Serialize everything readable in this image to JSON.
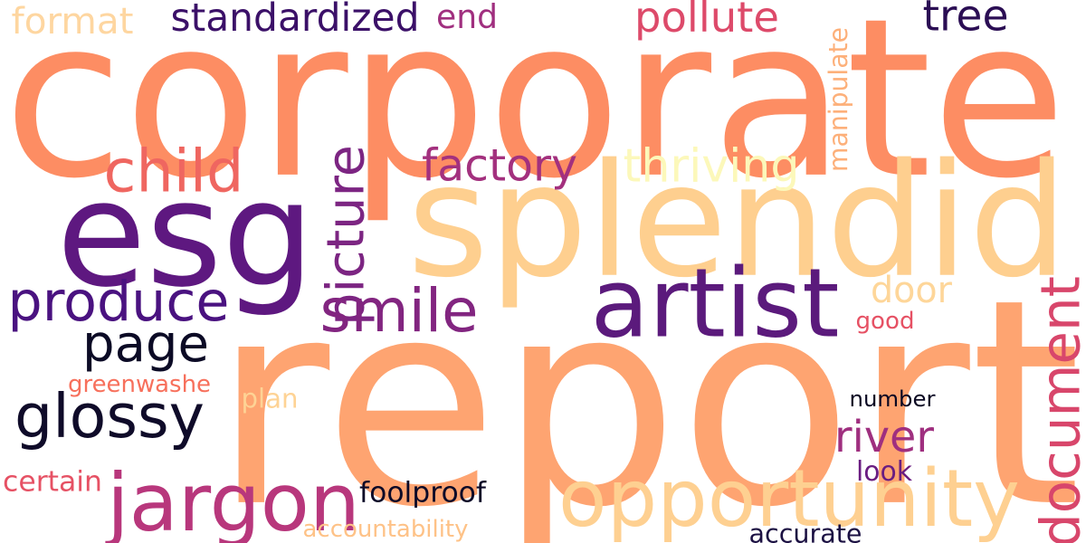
{
  "words": [
    {
      "id": "corporate",
      "text": "corporate",
      "color": "#fd8d63",
      "vertical": false
    },
    {
      "id": "report",
      "text": "report",
      "color": "#fea471",
      "vertical": false
    },
    {
      "id": "esg",
      "text": "esg",
      "color": "#5e1880",
      "vertical": false
    },
    {
      "id": "splendid",
      "text": "splendid",
      "color": "#fecf8f",
      "vertical": false
    },
    {
      "id": "jargon",
      "text": "jargon",
      "color": "#b8377c",
      "vertical": false
    },
    {
      "id": "opportunity",
      "text": "opportunity",
      "color": "#fed091",
      "vertical": false
    },
    {
      "id": "artist",
      "text": "artist",
      "color": "#5b1a7c",
      "vertical": false
    },
    {
      "id": "produce",
      "text": "produce",
      "color": "#4a1280",
      "vertical": false
    },
    {
      "id": "picture",
      "text": "picture",
      "color": "#7c2582",
      "vertical": true
    },
    {
      "id": "document",
      "text": "document",
      "color": "#d8466b",
      "vertical": true
    },
    {
      "id": "glossy",
      "text": "glossy",
      "color": "#0f0b29",
      "vertical": false
    },
    {
      "id": "page",
      "text": "page",
      "color": "#0b0a25",
      "vertical": false
    },
    {
      "id": "smile",
      "text": "smile",
      "color": "#822580",
      "vertical": false
    },
    {
      "id": "child",
      "text": "child",
      "color": "#ef6660",
      "vertical": false
    },
    {
      "id": "standardized",
      "text": "standardized",
      "color": "#3b1068",
      "vertical": false
    },
    {
      "id": "factory",
      "text": "factory",
      "color": "#a3307e",
      "vertical": false
    },
    {
      "id": "thriving",
      "text": "thriving",
      "color": "#fcf8ba",
      "vertical": false
    },
    {
      "id": "pollute",
      "text": "pollute",
      "color": "#dd4a6a",
      "vertical": false
    },
    {
      "id": "tree",
      "text": "tree",
      "color": "#2b0e54",
      "vertical": false
    },
    {
      "id": "format",
      "text": "format",
      "color": "#fed6a0",
      "vertical": false
    },
    {
      "id": "end",
      "text": "end",
      "color": "#a02f7f",
      "vertical": false
    },
    {
      "id": "door",
      "text": "door",
      "color": "#fed699",
      "vertical": false
    },
    {
      "id": "river",
      "text": "river",
      "color": "#9f2f7f",
      "vertical": false
    },
    {
      "id": "manipulate",
      "text": "manipulate",
      "color": "#fdb07a",
      "vertical": true
    },
    {
      "id": "good",
      "text": "good",
      "color": "#e65164",
      "vertical": false
    },
    {
      "id": "greenwashe",
      "text": "greenwashe",
      "color": "#f7705c",
      "vertical": false
    },
    {
      "id": "plan",
      "text": "plan",
      "color": "#fed395",
      "vertical": false
    },
    {
      "id": "number",
      "text": "number",
      "color": "#0a0822",
      "vertical": false
    },
    {
      "id": "look",
      "text": "look",
      "color": "#6a1d81",
      "vertical": false
    },
    {
      "id": "foolproof",
      "text": "foolproof",
      "color": "#0c0a27",
      "vertical": false
    },
    {
      "id": "certain",
      "text": "certain",
      "color": "#e65164",
      "vertical": false
    },
    {
      "id": "accountability",
      "text": "accountability",
      "color": "#fec287",
      "vertical": false
    },
    {
      "id": "accurate",
      "text": "accurate",
      "color": "#1b1042",
      "vertical": false
    }
  ]
}
